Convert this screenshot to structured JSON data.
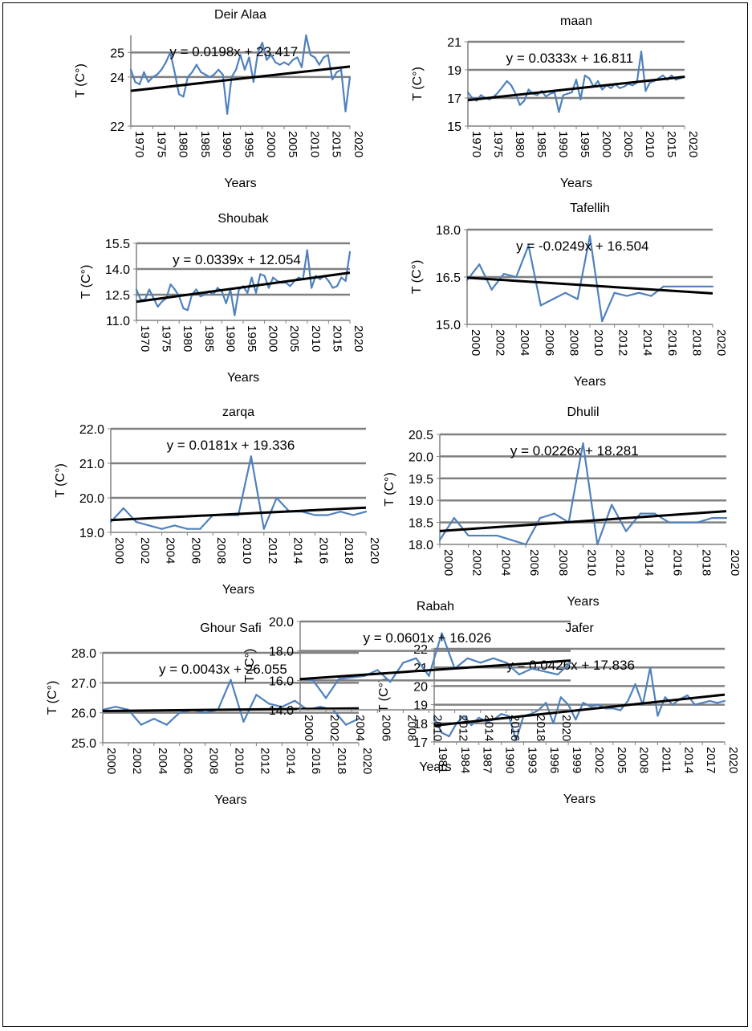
{
  "colors": {
    "series": "#4f81bd",
    "trend": "#000000",
    "grid": "#808080",
    "axis": "#808080"
  },
  "chart_data": [
    {
      "type": "line",
      "title": "Deir Alaa",
      "xlabel": "Years",
      "ylabel": "T  (C°)",
      "equation": "y = 0.0198x + 23.417",
      "ylim": [
        22,
        25.7
      ],
      "yticks": [
        22,
        24,
        25
      ],
      "ytick_labels": [
        "22",
        "24",
        "25"
      ],
      "grid": [
        24,
        25
      ],
      "xticks": [
        1970,
        1975,
        1980,
        1985,
        1990,
        1995,
        2000,
        2005,
        2010,
        2015,
        2020
      ],
      "xlim": [
        1970,
        2020
      ],
      "x_start": 1970,
      "values": [
        24.3,
        23.8,
        23.7,
        24.2,
        23.8,
        24.0,
        24.1,
        24.3,
        24.6,
        25.0,
        24.2,
        23.3,
        23.2,
        24.0,
        24.2,
        24.5,
        24.2,
        24.1,
        24.0,
        24.1,
        24.3,
        24.1,
        22.5,
        24.0,
        24.3,
        24.9,
        24.3,
        24.8,
        23.8,
        25.0,
        25.4,
        24.7,
        24.9,
        24.6,
        24.5,
        24.6,
        24.5,
        24.7,
        24.8,
        24.4,
        25.7,
        24.9,
        24.8,
        24.5,
        24.8,
        24.9,
        23.9,
        24.2,
        24.3,
        22.6,
        24.0
      ],
      "trend": {
        "slope": 0.0198,
        "intercept": 23.417
      }
    },
    {
      "type": "line",
      "title": "maan",
      "xlabel": "Years",
      "ylabel": "T  (C°)",
      "equation": "y = 0.0333x + 16.811",
      "ylim": [
        15,
        21
      ],
      "yticks": [
        15,
        17,
        19,
        21
      ],
      "ytick_labels": [
        "15",
        "17",
        "19",
        "21"
      ],
      "grid": [
        17,
        19,
        21
      ],
      "xticks": [
        1970,
        1975,
        1980,
        1985,
        1990,
        1995,
        2000,
        2005,
        2010,
        2015,
        2020
      ],
      "xlim": [
        1970,
        2020
      ],
      "x_start": 1970,
      "values": [
        17.4,
        17.0,
        16.8,
        17.2,
        17.0,
        16.9,
        17.1,
        17.4,
        17.8,
        18.2,
        17.9,
        17.3,
        16.5,
        16.8,
        17.6,
        17.3,
        17.2,
        17.5,
        17.1,
        17.3,
        17.4,
        16.0,
        17.2,
        17.3,
        17.4,
        18.3,
        16.9,
        18.6,
        18.4,
        17.8,
        18.2,
        17.6,
        17.9,
        17.7,
        18.0,
        17.7,
        17.8,
        18.0,
        17.9,
        18.1,
        20.3,
        17.5,
        18.1,
        18.2,
        18.4,
        18.6,
        18.3,
        18.6,
        18.3,
        18.4,
        18.5
      ],
      "trend": {
        "slope": 0.0333,
        "intercept": 16.811
      }
    },
    {
      "type": "line",
      "title": "Shoubak",
      "xlabel": "Years",
      "ylabel": "T  (C°)",
      "equation": "y = 0.0339x + 12.054",
      "ylim": [
        11.0,
        15.5
      ],
      "yticks": [
        11.0,
        12.5,
        14.0,
        15.5
      ],
      "ytick_labels": [
        "11.0",
        "12.5",
        "14.0",
        "15.5"
      ],
      "grid": [
        12.5,
        14.0,
        15.5
      ],
      "xticks": [
        1970,
        1975,
        1980,
        1985,
        1990,
        1995,
        2000,
        2005,
        2010,
        2015,
        2020
      ],
      "xlim": [
        1970,
        2020
      ],
      "x_start": 1970,
      "values": [
        12.8,
        12.2,
        12.2,
        12.8,
        12.3,
        11.8,
        12.1,
        12.3,
        13.1,
        12.8,
        12.4,
        11.7,
        11.6,
        12.5,
        12.8,
        12.4,
        12.5,
        12.7,
        12.5,
        12.9,
        12.7,
        12.0,
        12.8,
        11.3,
        12.8,
        13.0,
        12.6,
        13.5,
        12.6,
        13.7,
        13.6,
        12.9,
        13.5,
        13.3,
        13.2,
        13.2,
        13.0,
        13.3,
        13.5,
        13.4,
        15.1,
        12.9,
        13.6,
        13.4,
        13.6,
        13.3,
        12.9,
        13.0,
        13.5,
        13.3,
        15.0
      ],
      "trend": {
        "slope": 0.0339,
        "intercept": 12.054
      }
    },
    {
      "type": "line",
      "title": "Tafellih",
      "xlabel": "Years",
      "ylabel": "T  (C°)",
      "equation": "y = -0.0249x + 16.504",
      "ylim": [
        15.0,
        18.0
      ],
      "yticks": [
        15.0,
        16.5,
        18.0
      ],
      "ytick_labels": [
        "15.0",
        "16.5",
        "18.0"
      ],
      "grid": [
        16.5,
        18.0
      ],
      "xticks": [
        2000,
        2002,
        2004,
        2006,
        2008,
        2010,
        2012,
        2014,
        2016,
        2018,
        2020
      ],
      "xlim": [
        2000,
        2020
      ],
      "x_start": 2000,
      "values": [
        16.4,
        16.9,
        16.1,
        16.6,
        16.5,
        17.5,
        15.6,
        15.8,
        16.0,
        15.8,
        17.8,
        15.1,
        16.0,
        15.9,
        16.0,
        15.9,
        16.2,
        16.2,
        16.2,
        16.2,
        16.2
      ],
      "trend": {
        "slope": -0.0249,
        "intercept": 16.504
      }
    },
    {
      "type": "line",
      "title": "zarqa",
      "xlabel": "Years",
      "ylabel": "T  (C°)",
      "equation": "y = 0.0181x + 19.336",
      "ylim": [
        19.0,
        22.0
      ],
      "yticks": [
        19.0,
        20.0,
        21.0,
        22.0
      ],
      "ytick_labels": [
        "19.0",
        "20.0",
        "21.0",
        "22.0"
      ],
      "grid": [
        20.0,
        21.0,
        22.0
      ],
      "xticks": [
        2000,
        2002,
        2004,
        2006,
        2008,
        2010,
        2012,
        2014,
        2016,
        2018,
        2020
      ],
      "xlim": [
        2000,
        2020
      ],
      "x_start": 2000,
      "values": [
        19.3,
        19.7,
        19.3,
        19.2,
        19.1,
        19.2,
        19.1,
        19.1,
        19.5,
        19.5,
        19.5,
        21.2,
        19.1,
        20.0,
        19.6,
        19.6,
        19.5,
        19.5,
        19.6,
        19.5,
        19.6
      ],
      "trend": {
        "slope": 0.0181,
        "intercept": 19.336
      }
    },
    {
      "type": "line",
      "title": "Dhulil",
      "xlabel": "Years",
      "ylabel": "T  (C°)",
      "equation": "y = 0.0226x + 18.281",
      "ylim": [
        18.0,
        20.5
      ],
      "yticks": [
        18.0,
        18.5,
        19.0,
        19.5,
        20.0,
        20.5
      ],
      "ytick_labels": [
        "18.0",
        "18.5",
        "19.0",
        "19.5",
        "20.0",
        "20.5"
      ],
      "grid": [
        18.5,
        19.0,
        19.5,
        20.0,
        20.5
      ],
      "xticks": [
        2000,
        2002,
        2004,
        2006,
        2008,
        2010,
        2012,
        2014,
        2016,
        2018,
        2020
      ],
      "xlim": [
        2000,
        2020
      ],
      "x_start": 2000,
      "values": [
        18.1,
        18.6,
        18.2,
        18.2,
        18.2,
        18.1,
        18.0,
        18.6,
        18.7,
        18.5,
        20.3,
        18.0,
        18.9,
        18.3,
        18.7,
        18.7,
        18.5,
        18.5,
        18.5,
        18.6,
        18.6
      ],
      "trend": {
        "slope": 0.0226,
        "intercept": 18.281
      }
    },
    {
      "type": "line",
      "title": "Ghour Safi",
      "xlabel": "Years",
      "ylabel": "T  (C°)",
      "equation": "y = 0.0043x + 26.055",
      "ylim": [
        25.0,
        28.0
      ],
      "yticks": [
        25.0,
        26.0,
        27.0,
        28.0
      ],
      "ytick_labels": [
        "25.0",
        "26.0",
        "27.0",
        "28.0"
      ],
      "grid": [
        26.0,
        27.0,
        28.0
      ],
      "xticks": [
        2000,
        2002,
        2004,
        2006,
        2008,
        2010,
        2012,
        2014,
        2016,
        2018,
        2020
      ],
      "xlim": [
        2000,
        2020
      ],
      "x_start": 2000,
      "values": [
        26.1,
        26.2,
        26.1,
        25.6,
        25.8,
        25.6,
        26.0,
        26.1,
        26.0,
        26.1,
        27.1,
        25.7,
        26.6,
        26.3,
        26.2,
        26.4,
        26.1,
        26.2,
        26.1,
        25.6,
        25.8
      ],
      "trend": {
        "slope": 0.0043,
        "intercept": 26.055
      }
    },
    {
      "type": "line",
      "title": "Jafer",
      "xlabel": "Years",
      "ylabel": "T  (C°)",
      "equation": "y = 0.0426x + 17.836",
      "ylim": [
        17,
        22
      ],
      "yticks": [
        17,
        18,
        19,
        20,
        21,
        22
      ],
      "ytick_labels": [
        "17",
        "18",
        "19",
        "20",
        "21",
        "22"
      ],
      "grid": [
        18,
        19,
        20,
        21,
        22
      ],
      "xticks": [
        1981,
        1984,
        1987,
        1990,
        1993,
        1996,
        1999,
        2002,
        2005,
        2008,
        2011,
        2014,
        2017,
        2020
      ],
      "xlim": [
        1981,
        2020
      ],
      "x_start": 1981,
      "values": [
        18.3,
        17.5,
        17.3,
        18.0,
        18.4,
        17.9,
        18.3,
        18.1,
        18.2,
        18.5,
        18.4,
        17.1,
        18.4,
        18.5,
        18.7,
        19.1,
        18.0,
        19.4,
        19.0,
        18.2,
        19.1,
        18.9,
        19.0,
        18.8,
        18.8,
        18.7,
        19.2,
        20.1,
        19.0,
        21.0,
        18.4,
        19.4,
        19.0,
        19.3,
        19.5,
        19.0,
        19.1,
        19.2,
        19.1,
        19.2
      ],
      "trend": {
        "slope": 0.0426,
        "intercept": 17.836
      }
    },
    {
      "type": "line",
      "title": "Rabah",
      "xlabel": "Years",
      "ylabel": "T  (C°)",
      "equation": "y = 0.0601x + 16.026",
      "ylim": [
        14.0,
        20.0
      ],
      "yticks": [
        14.0,
        16.0,
        18.0,
        20.0
      ],
      "ytick_labels": [
        "14.0",
        "16.0",
        "18.0",
        "20.0"
      ],
      "grid": [
        16.0,
        18.0,
        20.0
      ],
      "xticks": [
        2000,
        2002,
        2004,
        2006,
        2008,
        2010,
        2012,
        2014,
        2016,
        2018,
        2020
      ],
      "xlim": [
        2000,
        2021
      ],
      "x_start": 2000,
      "values": [
        16.1,
        16.0,
        14.8,
        16.1,
        16.2,
        16.3,
        16.7,
        15.9,
        17.2,
        17.5,
        16.3,
        19.2,
        16.8,
        17.5,
        17.2,
        17.5,
        17.2,
        16.4,
        16.8,
        16.6,
        16.4,
        17.2
      ],
      "trend": {
        "slope": 0.0601,
        "intercept": 16.026
      }
    }
  ]
}
